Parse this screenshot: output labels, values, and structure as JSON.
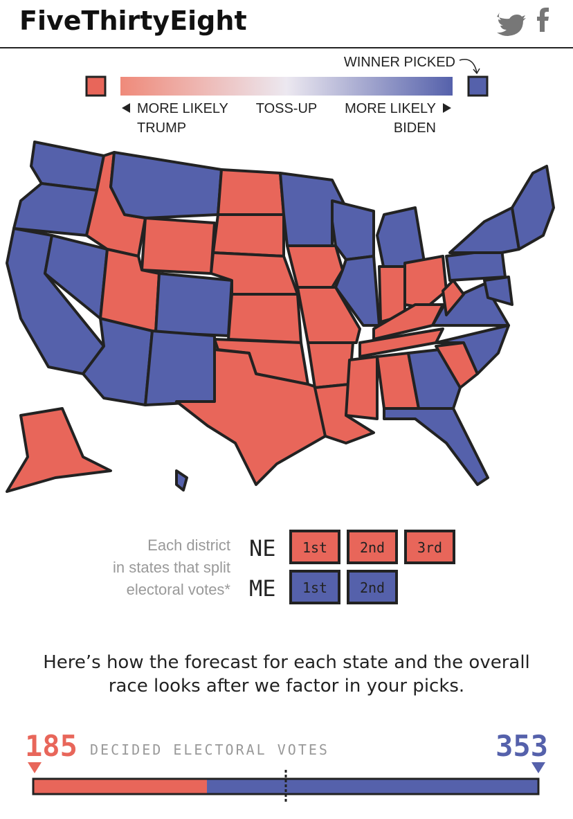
{
  "header": {
    "logo": "FiveThirtyEight"
  },
  "legend": {
    "winner_picked": "WINNER PICKED",
    "trump": [
      "MORE LIKELY",
      "TRUMP"
    ],
    "tossup": "TOSS-UP",
    "biden": [
      "MORE LIKELY",
      "BIDEN"
    ]
  },
  "districts": {
    "label": [
      "Each district",
      "in states that split",
      "electoral votes*"
    ],
    "states": [
      {
        "name": "NE",
        "picks": [
          "1st",
          "2nd",
          "3rd"
        ]
      },
      {
        "name": "ME",
        "picks": [
          "1st",
          "2nd"
        ]
      }
    ]
  },
  "message": [
    "Here’s how the forecast for each state and the overall",
    "race looks after we factor in your picks."
  ],
  "tally": {
    "trump": {
      "value": 185,
      "color": "#e8665a"
    },
    "label": "DECIDED ELECTORAL VOTES",
    "biden": {
      "value": 353,
      "color": "#5561ab"
    }
  }
}
